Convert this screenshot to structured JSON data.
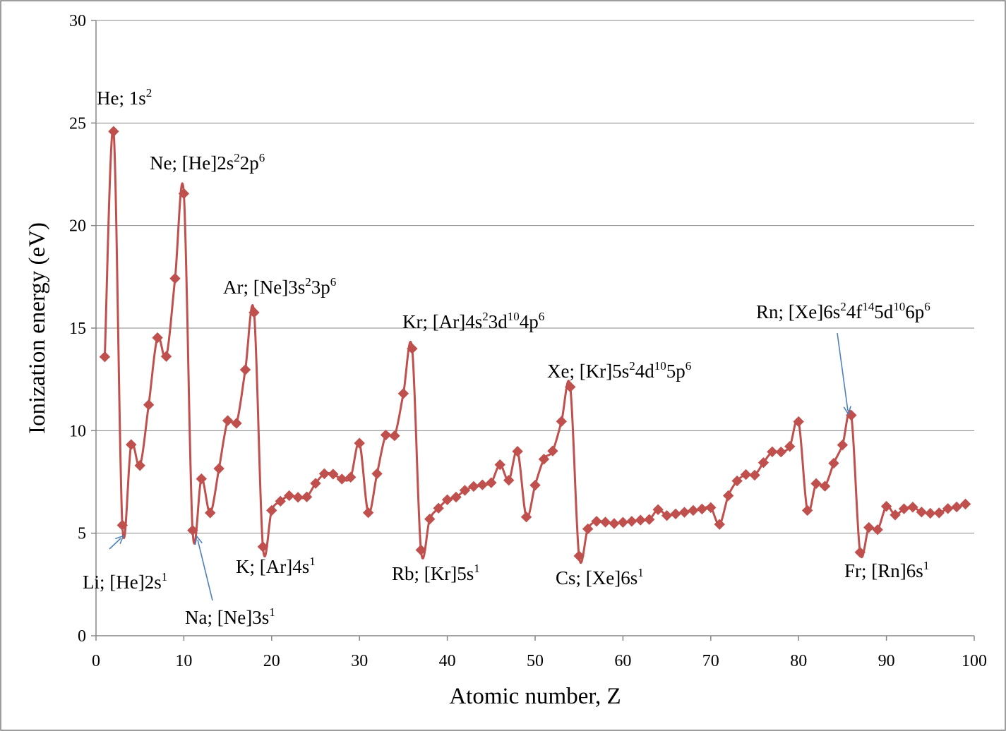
{
  "chart_data": {
    "type": "line",
    "title": "",
    "xlabel": "Atomic number, Z",
    "ylabel": "Ionization energy (eV)",
    "xlim": [
      0,
      100
    ],
    "ylim": [
      0,
      30
    ],
    "x_ticks": [
      "0",
      "10",
      "20",
      "30",
      "40",
      "50",
      "60",
      "70",
      "80",
      "90",
      "100"
    ],
    "y_ticks": [
      "0",
      "5",
      "10",
      "15",
      "20",
      "25",
      "30"
    ],
    "grid": "horizontal",
    "legend": "none",
    "series": [
      {
        "color": "#c0504d",
        "marker": "diamond",
        "x": [
          1,
          2,
          3,
          4,
          5,
          6,
          7,
          8,
          9,
          10,
          11,
          12,
          13,
          14,
          15,
          16,
          17,
          18,
          19,
          20,
          21,
          22,
          23,
          24,
          25,
          26,
          27,
          28,
          29,
          30,
          31,
          32,
          33,
          34,
          35,
          36,
          37,
          38,
          39,
          40,
          41,
          42,
          43,
          44,
          45,
          46,
          47,
          48,
          49,
          50,
          51,
          52,
          53,
          54,
          55,
          56,
          57,
          58,
          59,
          60,
          61,
          62,
          63,
          64,
          65,
          66,
          67,
          68,
          69,
          70,
          71,
          72,
          73,
          74,
          75,
          76,
          77,
          78,
          79,
          80,
          81,
          82,
          83,
          84,
          85,
          86,
          87,
          88,
          89,
          90,
          91,
          92,
          93,
          94,
          95,
          96,
          97,
          98,
          99
        ],
        "y": [
          13.6,
          24.59,
          5.39,
          9.32,
          8.3,
          11.26,
          14.53,
          13.62,
          17.42,
          21.56,
          5.14,
          7.65,
          5.99,
          8.15,
          10.49,
          10.36,
          12.97,
          15.76,
          4.34,
          6.11,
          6.56,
          6.83,
          6.75,
          6.77,
          7.43,
          7.9,
          7.88,
          7.64,
          7.73,
          9.39,
          6.0,
          7.9,
          9.79,
          9.75,
          11.81,
          14.0,
          4.18,
          5.69,
          6.22,
          6.63,
          6.76,
          7.09,
          7.28,
          7.36,
          7.46,
          8.34,
          7.58,
          8.99,
          5.79,
          7.34,
          8.61,
          9.01,
          10.45,
          12.13,
          3.89,
          5.21,
          5.58,
          5.54,
          5.47,
          5.53,
          5.58,
          5.64,
          5.67,
          6.15,
          5.86,
          5.94,
          6.02,
          6.11,
          6.18,
          6.25,
          5.43,
          6.83,
          7.55,
          7.86,
          7.83,
          8.44,
          8.97,
          8.96,
          9.23,
          10.44,
          6.11,
          7.42,
          7.29,
          8.41,
          9.3,
          10.75,
          4.07,
          5.28,
          5.17,
          6.31,
          5.89,
          6.19,
          6.27,
          6.03,
          5.97,
          5.99,
          6.2,
          6.28,
          6.42
        ]
      }
    ],
    "annotations": [
      {
        "element": "He",
        "config": "1s",
        "sup": "2",
        "rest": ""
      },
      {
        "element": "Ne",
        "config": "[He]2s",
        "sup": "2",
        "rest": "2p",
        "sup2": "6"
      },
      {
        "element": "Ar",
        "config": "[Ne]3s",
        "sup": "2",
        "rest": "3p",
        "sup2": "6"
      },
      {
        "element": "Kr",
        "config": "[Ar]4s",
        "sup": "2",
        "rest": "3d",
        "sup2": "10",
        "rest2": "4p",
        "sup3": "6"
      },
      {
        "element": "Xe",
        "config": "[Kr]5s",
        "sup": "2",
        "rest": "4d",
        "sup2": "10",
        "rest2": "5p",
        "sup3": "6"
      },
      {
        "element": "Rn",
        "config": "[Xe]6s",
        "sup": "2",
        "rest": "4f",
        "sup2": "14",
        "rest2": "5d",
        "sup3": "10",
        "rest3": "6p",
        "sup4": "6"
      },
      {
        "element": "Li",
        "config": "[He]2s",
        "sup": "1"
      },
      {
        "element": "Na",
        "config": "[Ne]3s",
        "sup": "1"
      },
      {
        "element": "K",
        "config": "[Ar]4s",
        "sup": "1"
      },
      {
        "element": "Rb",
        "config": "[Kr]5s",
        "sup": "1"
      },
      {
        "element": "Cs",
        "config": "[Xe]6s",
        "sup": "1"
      },
      {
        "element": "Fr",
        "config": "[Rn]6s",
        "sup": "1"
      }
    ]
  }
}
